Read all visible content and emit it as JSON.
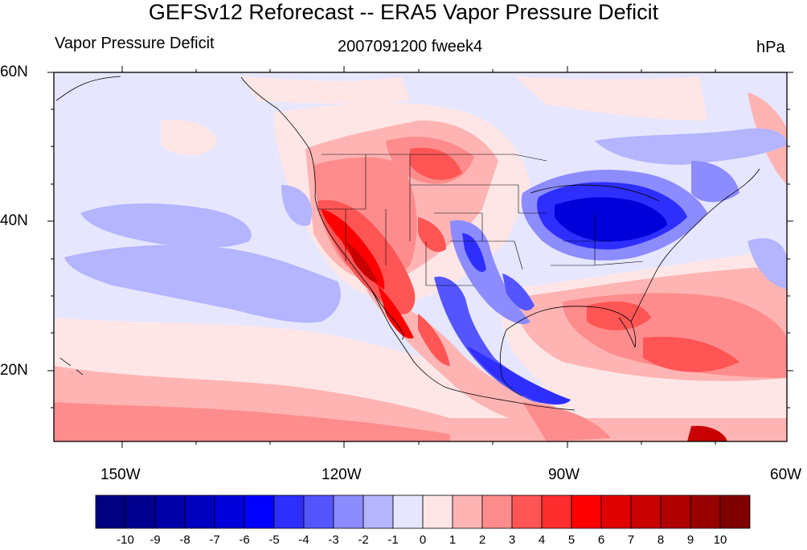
{
  "title": "GEFSv12 Reforecast -- ERA5 Vapor Pressure Deficit",
  "subtitle_left": "Vapor Pressure Deficit",
  "subtitle_center": "2007091200 fweek4",
  "subtitle_right": "hPa",
  "latitude_labels": [
    "60N",
    "40N",
    "20N"
  ],
  "longitude_labels": [
    "150W",
    "120W",
    "90W",
    "60W"
  ],
  "colorbar": {
    "labels": [
      "-10",
      "-9",
      "-8",
      "-7",
      "-6",
      "-5",
      "-4",
      "-3",
      "-2",
      "-1",
      "0",
      "1",
      "2",
      "3",
      "4",
      "5",
      "6",
      "7",
      "8",
      "9",
      "10"
    ],
    "colors": [
      "#000080",
      "#00008f",
      "#0000a8",
      "#0000c0",
      "#0000db",
      "#0000ff",
      "#2e2eff",
      "#5555ff",
      "#8c8cff",
      "#b4b4ff",
      "#e6e6ff",
      "#ffe6e6",
      "#ffb4b4",
      "#ff8c8c",
      "#ff5555",
      "#ff2e2e",
      "#ff0000",
      "#e00000",
      "#c80000",
      "#b00000",
      "#960000",
      "#7f0000"
    ]
  }
}
